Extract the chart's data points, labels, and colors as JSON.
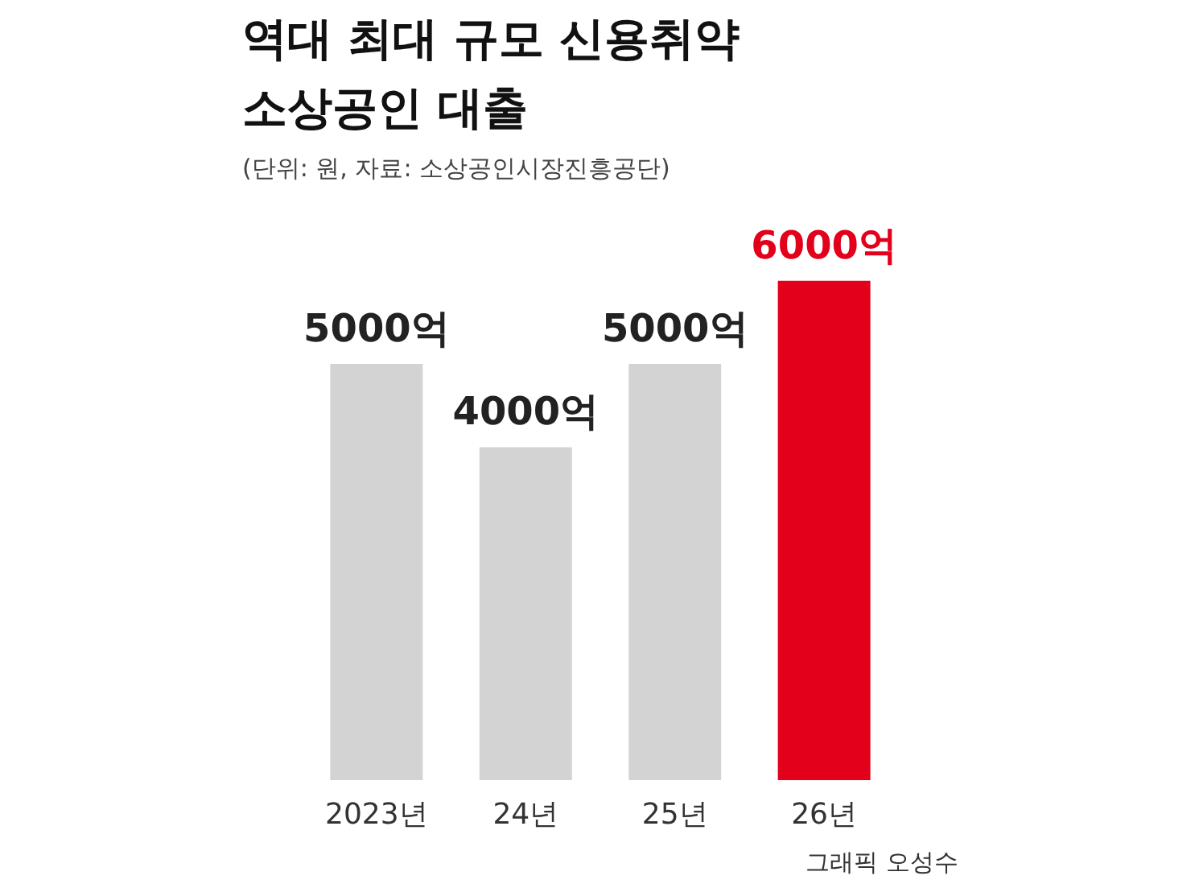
{
  "chart_data": {
    "type": "bar",
    "title": "역대 최대 규모 신용취약\n소상공인 대출",
    "subtitle": "(단위: 원, 자료: 소상공인시장진흥공단)",
    "categories": [
      "2023년",
      "24년",
      "25년",
      "26년"
    ],
    "values": [
      5000,
      4000,
      5000,
      6000
    ],
    "colors": [
      "#d3d3d3",
      "#d3d3d3",
      "#d3d3d3",
      "#e2001a"
    ],
    "value_labels": [
      "5000억",
      "4000억",
      "5000억",
      "6000억"
    ],
    "grid": false,
    "annotations": [
      "그래픽 오성수"
    ]
  }
}
